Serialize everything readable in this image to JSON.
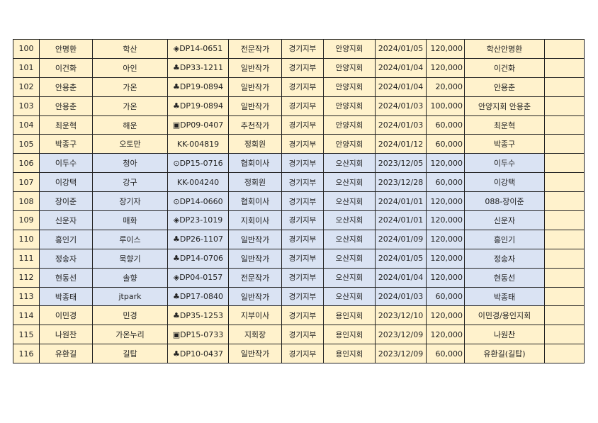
{
  "colors": {
    "yellow_group": "#fff2cc",
    "blue_group": "#dae3f3"
  },
  "rows": [
    {
      "group": "yellow",
      "cells": [
        "100",
        "안명환",
        "학산",
        "◈DP14-0651",
        "전문작가",
        "경기지부",
        "안양지회",
        "2024/01/05",
        "120,000",
        "학산안명환",
        ""
      ]
    },
    {
      "group": "yellow",
      "cells": [
        "101",
        "이건화",
        "아인",
        "♣DP33-1211",
        "일반작가",
        "경기지부",
        "안양지회",
        "2024/01/04",
        "120,000",
        "이건화",
        ""
      ]
    },
    {
      "group": "yellow",
      "cells": [
        "102",
        "안용춘",
        "가온",
        "♣DP19-0894",
        "일반작가",
        "경기지부",
        "안양지회",
        "2024/01/04",
        "20,000",
        "안용춘",
        ""
      ]
    },
    {
      "group": "yellow",
      "cells": [
        "103",
        "안용춘",
        "가온",
        "♣DP19-0894",
        "일반작가",
        "경기지부",
        "안양지회",
        "2024/01/03",
        "100,000",
        "안양지회 안용춘",
        ""
      ]
    },
    {
      "group": "yellow",
      "cells": [
        "104",
        "최운혁",
        "해운",
        "▣DP09-0407",
        "추천작가",
        "경기지부",
        "안양지회",
        "2024/01/03",
        "60,000",
        "최운혁",
        ""
      ]
    },
    {
      "group": "yellow",
      "cells": [
        "105",
        "박종구",
        "오토만",
        "KK-004819",
        "정회원",
        "경기지부",
        "안양지회",
        "2024/01/12",
        "60,000",
        "박종구",
        ""
      ]
    },
    {
      "group": "blue",
      "cells": [
        "106",
        "이두수",
        "청아",
        "⊙DP15-0716",
        "협회이사",
        "경기지부",
        "오산지회",
        "2023/12/05",
        "120,000",
        "이두수",
        ""
      ]
    },
    {
      "group": "blue",
      "cells": [
        "107",
        "이강택",
        "강구",
        "KK-004240",
        "정회원",
        "경기지부",
        "오산지회",
        "2023/12/28",
        "60,000",
        "이강택",
        ""
      ]
    },
    {
      "group": "blue",
      "cells": [
        "108",
        "장이준",
        "장기자",
        "⊙DP14-0660",
        "협회이사",
        "경기지부",
        "오산지회",
        "2024/01/01",
        "120,000",
        "088-장이준",
        ""
      ]
    },
    {
      "group": "blue",
      "cells": [
        "109",
        "신운자",
        "매화",
        "◈DP23-1019",
        "지회이사",
        "경기지부",
        "오산지회",
        "2024/01/01",
        "120,000",
        "신운자",
        ""
      ]
    },
    {
      "group": "blue",
      "cells": [
        "110",
        "홍인기",
        "루이스",
        "♣DP26-1107",
        "일반작가",
        "경기지부",
        "오산지회",
        "2024/01/09",
        "120,000",
        "홍인기",
        ""
      ]
    },
    {
      "group": "blue",
      "cells": [
        "111",
        "정송자",
        "묵향기",
        "♣DP14-0706",
        "일반작가",
        "경기지부",
        "오산지회",
        "2024/01/05",
        "120,000",
        "정송자",
        ""
      ]
    },
    {
      "group": "blue",
      "cells": [
        "112",
        "현동선",
        "솔향",
        "◈DP04-0157",
        "전문작가",
        "경기지부",
        "오산지회",
        "2024/01/04",
        "120,000",
        "현동선",
        ""
      ]
    },
    {
      "group": "blue",
      "cells": [
        "113",
        "박종태",
        "jtpark",
        "♣DP17-0840",
        "일반작가",
        "경기지부",
        "오산지회",
        "2024/01/03",
        "60,000",
        "박종태",
        ""
      ]
    },
    {
      "group": "yellow",
      "cells": [
        "114",
        "이민경",
        "민경",
        "♣DP35-1253",
        "지부이사",
        "경기지부",
        "용인지회",
        "2023/12/10",
        "120,000",
        "이민경/용인지회",
        ""
      ]
    },
    {
      "group": "yellow",
      "cells": [
        "115",
        "나원찬",
        "가온누리",
        "▣DP15-0733",
        "지회장",
        "경기지부",
        "용인지회",
        "2023/12/09",
        "120,000",
        "나원찬",
        ""
      ]
    },
    {
      "group": "yellow",
      "cells": [
        "116",
        "유환길",
        "길탑",
        "♣DP10-0437",
        "일반작가",
        "경기지부",
        "용인지회",
        "2023/12/09",
        "60,000",
        "유환길(길탑)",
        ""
      ]
    }
  ]
}
